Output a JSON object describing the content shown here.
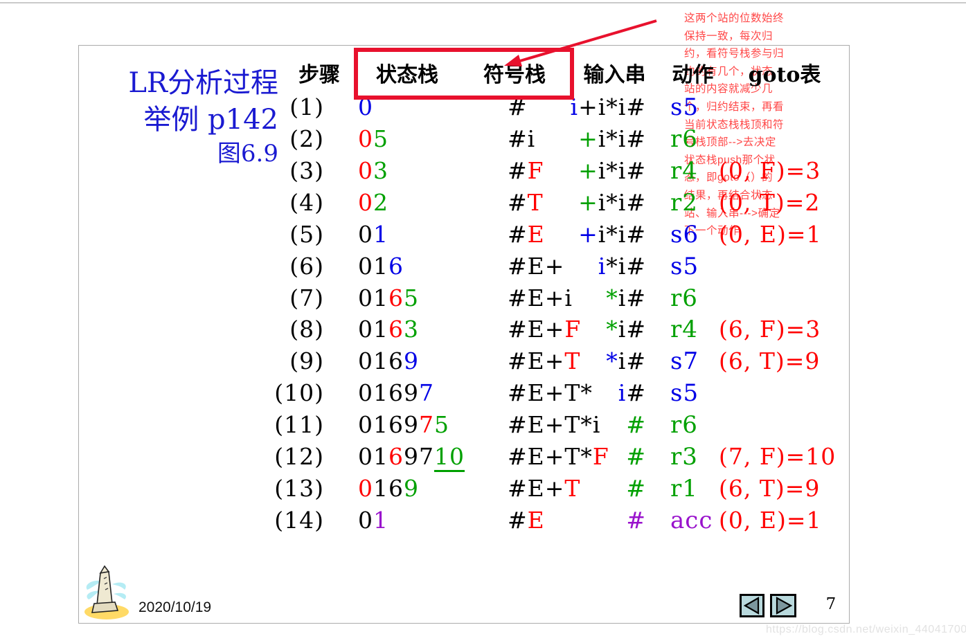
{
  "title": {
    "line1": "LR分析过程",
    "line2": "举例 p142",
    "line3": "图6.9"
  },
  "header": {
    "step": "步骤",
    "state_stack": "状态栈",
    "symbol_stack": "符号栈",
    "input": "输入串",
    "action": "动作",
    "goto": "goto表"
  },
  "rows": [
    {
      "step": "(1)",
      "state": [
        {
          "t": "0",
          "c": "blue"
        }
      ],
      "symbol": [
        {
          "t": "#",
          "c": "black"
        }
      ],
      "input": [
        {
          "t": "i",
          "c": "blue"
        },
        {
          "t": "+i*i#",
          "c": "black"
        }
      ],
      "action": {
        "t": "s5",
        "c": "blue"
      },
      "goto": null
    },
    {
      "step": "(2)",
      "state": [
        {
          "t": "0",
          "c": "red"
        },
        {
          "t": "5",
          "c": "green"
        }
      ],
      "symbol": [
        {
          "t": "#i",
          "c": "black"
        }
      ],
      "input": [
        {
          "t": "+",
          "c": "green"
        },
        {
          "t": "i*i#",
          "c": "black"
        }
      ],
      "action": {
        "t": "r6",
        "c": "green"
      },
      "goto": null
    },
    {
      "step": "(3)",
      "state": [
        {
          "t": "0",
          "c": "red"
        },
        {
          "t": "3",
          "c": "green"
        }
      ],
      "symbol": [
        {
          "t": "#",
          "c": "black"
        },
        {
          "t": "F",
          "c": "red"
        }
      ],
      "input": [
        {
          "t": "+",
          "c": "green"
        },
        {
          "t": "i*i#",
          "c": "black"
        }
      ],
      "action": {
        "t": "r4",
        "c": "green"
      },
      "goto": "(0, F)=3"
    },
    {
      "step": "(4)",
      "state": [
        {
          "t": "0",
          "c": "red"
        },
        {
          "t": "2",
          "c": "green"
        }
      ],
      "symbol": [
        {
          "t": "#",
          "c": "black"
        },
        {
          "t": "T",
          "c": "red"
        }
      ],
      "input": [
        {
          "t": "+",
          "c": "green"
        },
        {
          "t": "i*i#",
          "c": "black"
        }
      ],
      "action": {
        "t": "r2",
        "c": "green"
      },
      "goto": "(0, T)=2"
    },
    {
      "step": "(5)",
      "state": [
        {
          "t": "0",
          "c": "black"
        },
        {
          "t": "1",
          "c": "blue"
        }
      ],
      "symbol": [
        {
          "t": "#",
          "c": "black"
        },
        {
          "t": "E",
          "c": "red"
        }
      ],
      "input": [
        {
          "t": "+",
          "c": "blue"
        },
        {
          "t": "i*i#",
          "c": "black"
        }
      ],
      "action": {
        "t": "s6",
        "c": "blue"
      },
      "goto": "(0, E)=1"
    },
    {
      "step": "(6)",
      "state": [
        {
          "t": "01",
          "c": "black"
        },
        {
          "t": "6",
          "c": "blue"
        }
      ],
      "symbol": [
        {
          "t": "#E+",
          "c": "black"
        }
      ],
      "input": [
        {
          "t": "i",
          "c": "blue"
        },
        {
          "t": "*i#",
          "c": "black"
        }
      ],
      "action": {
        "t": "s5",
        "c": "blue"
      },
      "goto": null
    },
    {
      "step": "(7)",
      "state": [
        {
          "t": "01",
          "c": "black"
        },
        {
          "t": "6",
          "c": "red"
        },
        {
          "t": "5",
          "c": "green"
        }
      ],
      "symbol": [
        {
          "t": "#E+i",
          "c": "black"
        }
      ],
      "input": [
        {
          "t": "*",
          "c": "green"
        },
        {
          "t": "i#",
          "c": "black"
        }
      ],
      "action": {
        "t": "r6",
        "c": "green"
      },
      "goto": null
    },
    {
      "step": "(8)",
      "state": [
        {
          "t": "01",
          "c": "black"
        },
        {
          "t": "6",
          "c": "red"
        },
        {
          "t": "3",
          "c": "green"
        }
      ],
      "symbol": [
        {
          "t": "#E+",
          "c": "black"
        },
        {
          "t": "F",
          "c": "red"
        }
      ],
      "input": [
        {
          "t": "*",
          "c": "green"
        },
        {
          "t": "i#",
          "c": "black"
        }
      ],
      "action": {
        "t": "r4",
        "c": "green"
      },
      "goto": "(6, F)=3"
    },
    {
      "step": "(9)",
      "state": [
        {
          "t": "016",
          "c": "black"
        },
        {
          "t": "9",
          "c": "blue"
        }
      ],
      "symbol": [
        {
          "t": "#E+",
          "c": "black"
        },
        {
          "t": "T",
          "c": "red"
        }
      ],
      "input": [
        {
          "t": "*",
          "c": "blue"
        },
        {
          "t": "i#",
          "c": "black"
        }
      ],
      "action": {
        "t": "s7",
        "c": "blue"
      },
      "goto": "(6, T)=9"
    },
    {
      "step": "(10)",
      "state": [
        {
          "t": "0169",
          "c": "black"
        },
        {
          "t": "7",
          "c": "blue"
        }
      ],
      "symbol": [
        {
          "t": "#E+T*",
          "c": "black"
        }
      ],
      "input": [
        {
          "t": "i",
          "c": "blue"
        },
        {
          "t": "#",
          "c": "black"
        }
      ],
      "action": {
        "t": "s5",
        "c": "blue"
      },
      "goto": null
    },
    {
      "step": "(11)",
      "state": [
        {
          "t": "0169",
          "c": "black"
        },
        {
          "t": "7",
          "c": "red"
        },
        {
          "t": "5",
          "c": "green"
        }
      ],
      "symbol": [
        {
          "t": "#E+T*i",
          "c": "black"
        }
      ],
      "input": [
        {
          "t": "#",
          "c": "green"
        }
      ],
      "action": {
        "t": "r6",
        "c": "green"
      },
      "goto": null
    },
    {
      "step": "(12)",
      "state": [
        {
          "t": "01",
          "c": "black"
        },
        {
          "t": "6",
          "c": "red"
        },
        {
          "t": "97",
          "c": "black"
        },
        {
          "t": "10",
          "c": "green",
          "u": true
        }
      ],
      "symbol": [
        {
          "t": "#E+T*",
          "c": "black"
        },
        {
          "t": "F",
          "c": "red"
        }
      ],
      "input": [
        {
          "t": "#",
          "c": "green"
        }
      ],
      "action": {
        "t": "r3",
        "c": "green"
      },
      "goto": "(7, F)=10"
    },
    {
      "step": "(13)",
      "state": [
        {
          "t": "0",
          "c": "red"
        },
        {
          "t": "16",
          "c": "black"
        },
        {
          "t": "9",
          "c": "green"
        }
      ],
      "symbol": [
        {
          "t": "#E+",
          "c": "black"
        },
        {
          "t": "T",
          "c": "red"
        }
      ],
      "input": [
        {
          "t": "#",
          "c": "green"
        }
      ],
      "action": {
        "t": "r1",
        "c": "green"
      },
      "goto": "(6, T)=9"
    },
    {
      "step": "(14)",
      "state": [
        {
          "t": "0",
          "c": "black"
        },
        {
          "t": "1",
          "c": "purple"
        }
      ],
      "symbol": [
        {
          "t": "#",
          "c": "black"
        },
        {
          "t": "E",
          "c": "red"
        }
      ],
      "input": [
        {
          "t": "#",
          "c": "purple"
        }
      ],
      "action": {
        "t": "acc",
        "c": "purple"
      },
      "goto": "(0, E)=1"
    }
  ],
  "annotation_lines": [
    "这两个站的位数始终",
    "保持一致，每次归",
    "约，看符号栈参与归",
    "约的有几个，状态",
    "站的内容就减少几",
    "个，归约结束，再看",
    "当前状态栈栈顶和符",
    "号栈顶部-->去决定",
    "状态栈push那个状",
    "态，即goto（）的",
    "结果，再结合状态",
    "站、输入串--->确定",
    "下一个动作"
  ],
  "footer": {
    "date": "2020/10/19",
    "page": "7"
  },
  "icons": {
    "prev": "left-triangle-arrow",
    "next": "right-triangle-arrow",
    "clipart": "obelisk-monument"
  },
  "watermark": "https://blog.csdn.net/weixin_44041700",
  "colors": {
    "black": "#000000",
    "blue": "#0000e6",
    "red": "#ff0000",
    "green": "#00a000",
    "purple": "#9912cc",
    "title_blue": "#1a1ad1",
    "annotation_red": "#ff4747",
    "accent_red": "#e8112d"
  }
}
